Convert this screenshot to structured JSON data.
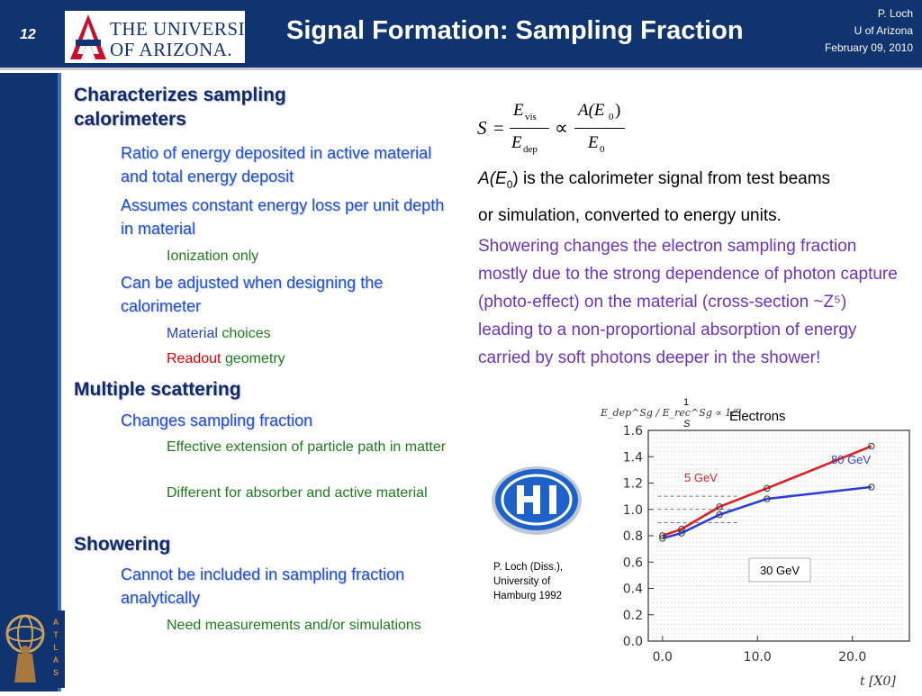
{
  "header": {
    "slide_number": "12",
    "university_line1": "THE UNIVERSITY",
    "university_line2": "OF ARIZONA.",
    "title": "Signal Formation: Sampling Fraction",
    "author": "P. Loch",
    "affiliation": "U of Arizona",
    "date": "February 09, 2010"
  },
  "left": {
    "b1_1": "Characterizes sampling calorimeters",
    "b2_1": "Ratio of energy deposited in active material and total energy deposit",
    "b2_2": "Assumes constant energy loss per unit depth in material",
    "b3_1": "Ionization only",
    "b2_3": "Can be adjusted when designing the calorimeter",
    "b3_2_word": "Material",
    "b3_2_rest": " choices",
    "b3_3_word": "Readout",
    "b3_3_rest": " geometry",
    "b1_2": "Multiple scattering",
    "b2_4": "Changes sampling fraction",
    "b3_4": "Effective extension of particle path in matter",
    "b3_5": "Different for absorber and active material",
    "b1_3": "Showering",
    "b2_5": "Cannot be included in sampling fraction analytically",
    "b3_6": "Need measurements and/or simulations"
  },
  "right": {
    "formula": {
      "S": "S",
      "eq": "=",
      "E_vis": "E",
      "vis_sub": "vis",
      "E_dep": "E",
      "dep_sub": "dep",
      "prop": "∝",
      "A_E0": "A(E",
      "zero": "0",
      "close": ")",
      "E0": "E"
    },
    "a_text_1_prefix": "A",
    "a_text_1_mid": "(E",
    "a_text_1_sub": "0",
    "a_text_1_rest": ") is the calorimeter signal from test beams",
    "a_text_2": "or simulation, converted to energy units.",
    "purple_text": "Showering changes the electron sampling fraction mostly due to the strong dependence of photon capture (photo-effect) on the material (cross-section ~Z⁵) leading to a non-proportional absorption of energy carried by soft photons deeper in the shower!",
    "citation_line1": "P. Loch (Diss.),",
    "citation_line2": "University of",
    "citation_line3": "Hamburg 1992"
  },
  "chart_data": {
    "type": "line",
    "title": "Electrons",
    "ylabel": "E_dep^Sg / E_rec^Sg ∝ 1/S",
    "ylabel_one": "1",
    "ylabel_s": "S",
    "xlabel": "t [X0]",
    "xlim": [
      -1.5,
      26
    ],
    "ylim": [
      0,
      1.6
    ],
    "yticks": [
      "0.0",
      "0.2",
      "0.4",
      "0.6",
      "0.8",
      "1.0",
      "1.2",
      "1.4",
      "1.6"
    ],
    "xticks": [
      "0.0",
      "10.0",
      "20.0"
    ],
    "xtick_values": [
      0,
      10,
      20
    ],
    "ytick_values": [
      0,
      0.2,
      0.4,
      0.6,
      0.8,
      1.0,
      1.2,
      1.4,
      1.6
    ],
    "series": [
      {
        "name": "5 GeV",
        "color": "#e02020",
        "x": [
          0,
          2,
          6,
          11,
          22
        ],
        "y": [
          0.8,
          0.85,
          1.02,
          1.16,
          1.48
        ]
      },
      {
        "name": "80 GeV",
        "color": "#2a3ed8",
        "x": [
          0,
          2,
          6,
          11,
          22
        ],
        "y": [
          0.78,
          0.82,
          0.96,
          1.08,
          1.17
        ]
      }
    ],
    "annotation_30gev": "30 GeV",
    "grid": true,
    "colors": {
      "5gev": "#e02020",
      "80gev": "#2a3ed8"
    }
  }
}
